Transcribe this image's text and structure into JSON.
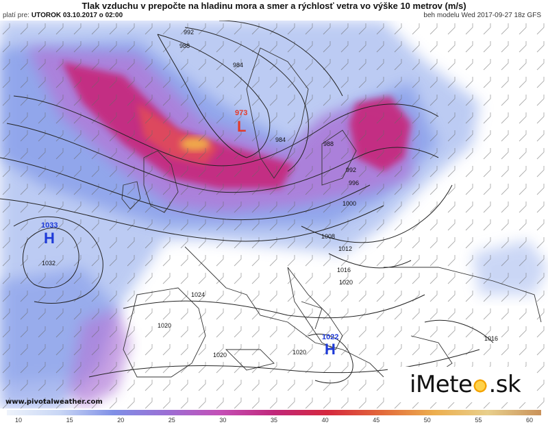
{
  "header": {
    "title": "Tlak vzduchu v prepočte na hladinu mora a smer a rýchlosť vetra vo výške 10 metrov (m/s)",
    "valid_label": "platí pre:",
    "valid_date": "UTOROK 03.10.2017 o 02:00",
    "run_info": "beh modelu Wed 2017-09-27 18z GFS"
  },
  "map": {
    "highs": [
      {
        "label": "H",
        "value": "1033"
      },
      {
        "label": "H",
        "value": "1022"
      }
    ],
    "lows": [
      {
        "label": "L",
        "value": "973"
      }
    ],
    "isobar_labels": [
      "992",
      "988",
      "984",
      "984",
      "988",
      "992",
      "996",
      "1000",
      "1008",
      "1012",
      "1016",
      "1020",
      "1024",
      "1020",
      "1020",
      "1020",
      "1016",
      "1032"
    ],
    "colors": {
      "high": "#1e3ad8",
      "low": "#e23a2a",
      "land": "#ffffff",
      "sea": "#ffffff"
    }
  },
  "credit": "www.pivotalweather.com",
  "logo": {
    "text_left": "iMete",
    "text_right": ".sk",
    "icon": "sun-icon"
  },
  "colorbar": {
    "ticks": [
      "10",
      "15",
      "20",
      "25",
      "30",
      "35",
      "40",
      "45",
      "50",
      "55",
      "60"
    ],
    "min": 10,
    "max": 60
  }
}
